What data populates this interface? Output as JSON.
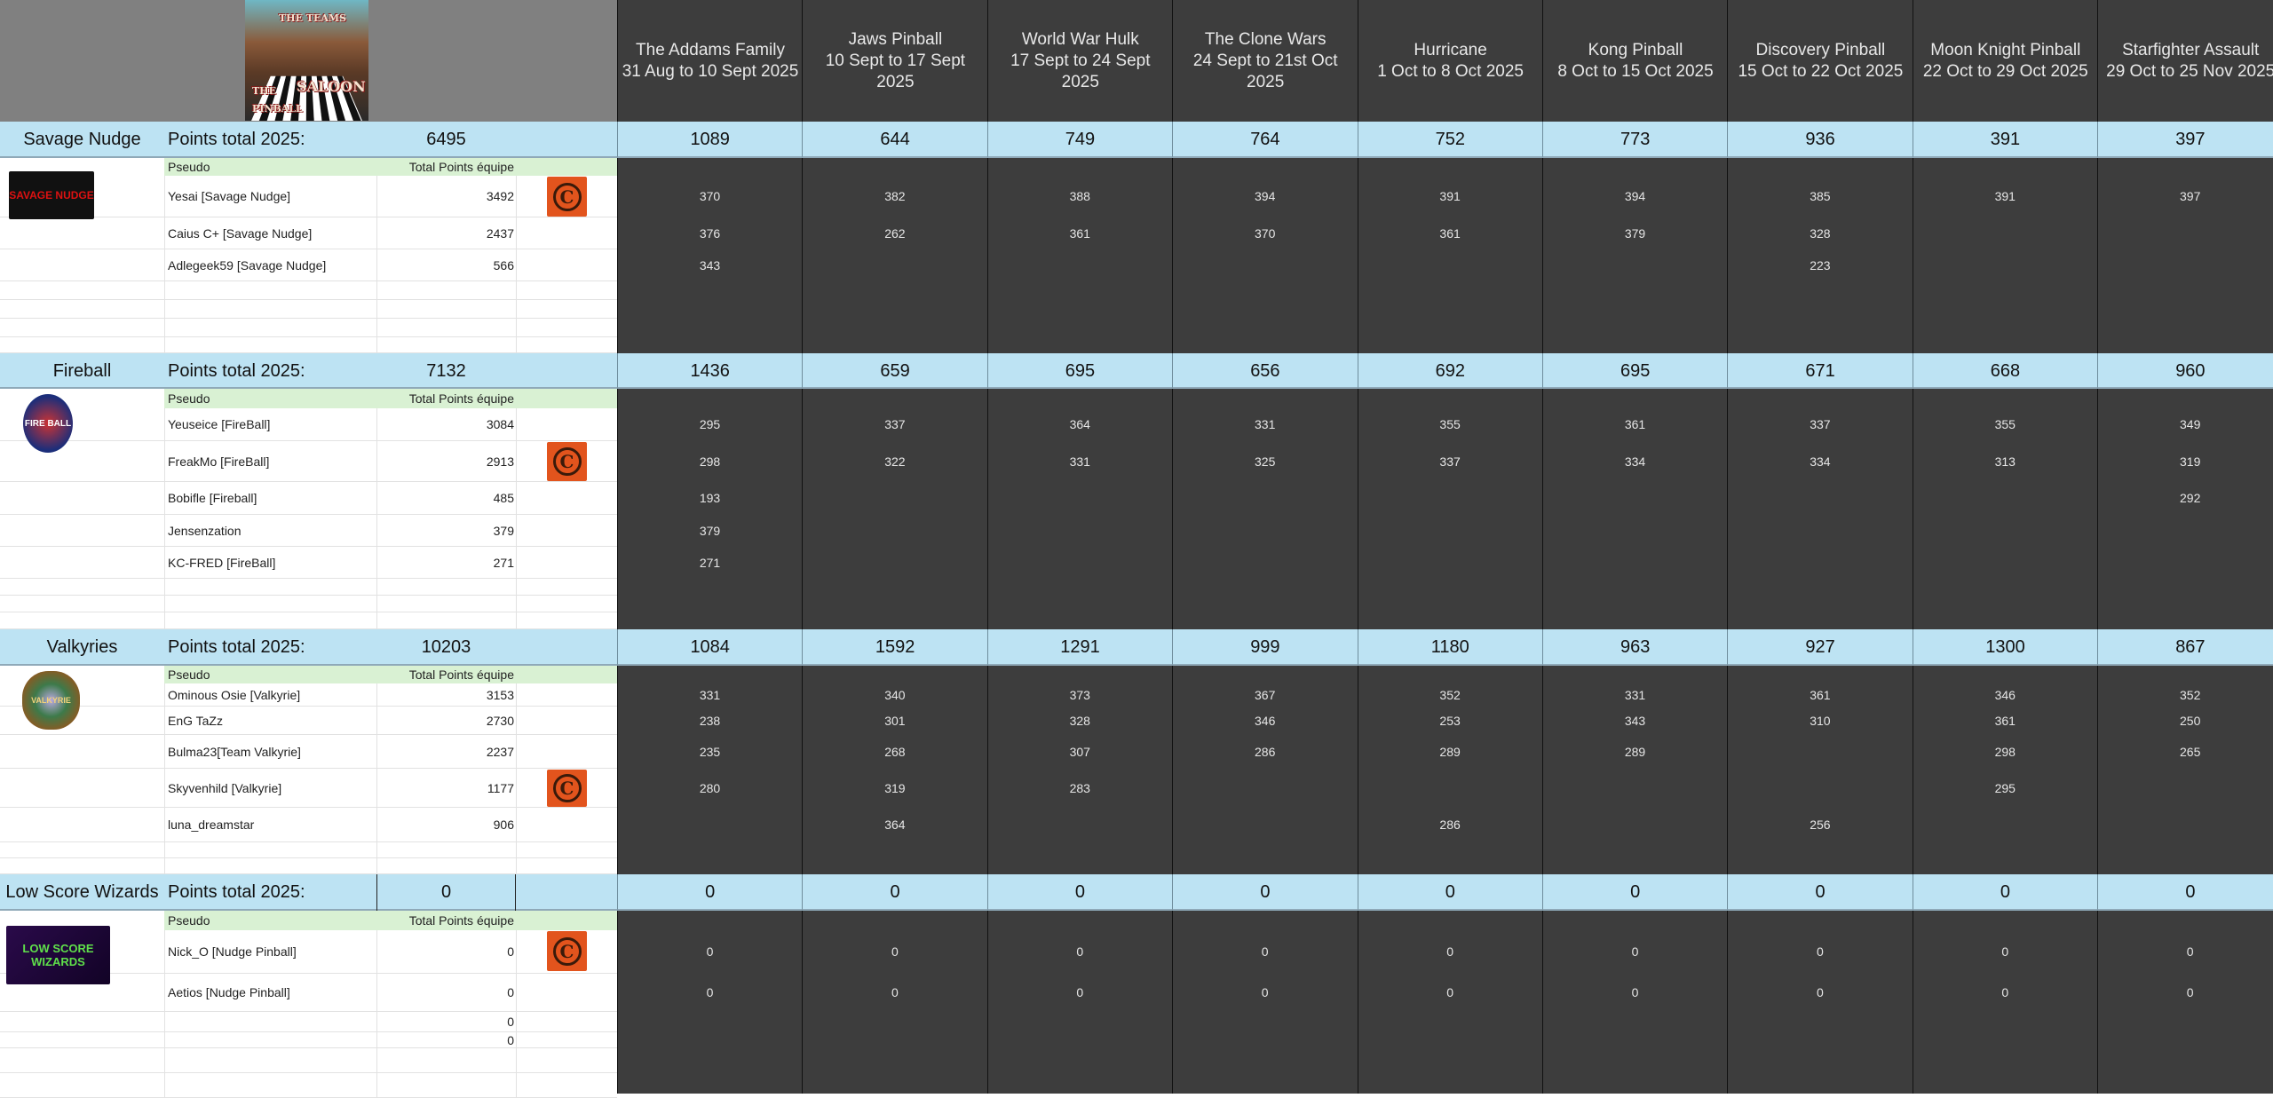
{
  "poster": {
    "line1": "THE TEAMS",
    "line2": "THE",
    "line3": "SALOON",
    "line4": "PINBALL"
  },
  "labels": {
    "points_total": "Points total 2025:",
    "pseudo": "Pseudo",
    "total_points": "Total Points équipe"
  },
  "games": [
    {
      "name": "The Addams Family",
      "dates": "31 Aug to 10 Sept 2025"
    },
    {
      "name": "Jaws Pinball",
      "dates": "10 Sept to 17 Sept 2025"
    },
    {
      "name": "World War Hulk",
      "dates": "17 Sept to 24 Sept 2025"
    },
    {
      "name": "The Clone Wars",
      "dates": "24 Sept to 21st Oct 2025"
    },
    {
      "name": "Hurricane",
      "dates": "1 Oct to  8 Oct 2025"
    },
    {
      "name": "Kong Pinball",
      "dates": "8 Oct to 15 Oct 2025"
    },
    {
      "name": "Discovery Pinball",
      "dates": "15 Oct to 22 Oct 2025"
    },
    {
      "name": "Moon Knight Pinball",
      "dates": "22 Oct to 29 Oct 2025"
    },
    {
      "name": "Starfighter Assault",
      "dates": "29 Oct to 25 Nov 2025"
    }
  ],
  "colors": {
    "team_header": "#bde3f3",
    "pseudo_header": "#d9f1d3",
    "game_column": "#3d3d3d",
    "header_gray": "#808080",
    "badge": "#e2541d"
  },
  "teams": [
    {
      "name": "Savage Nudge",
      "total": "6495",
      "logo_text": "SAVAGE NUDGE",
      "game_totals": [
        "1089",
        "644",
        "749",
        "764",
        "752",
        "773",
        "936",
        "391",
        "397"
      ],
      "players": [
        {
          "pseudo": "Yesai [Savage Nudge]",
          "total": "3492",
          "badge": "c-badge-icon",
          "scores": [
            "370",
            "382",
            "388",
            "394",
            "391",
            "394",
            "385",
            "391",
            "397"
          ]
        },
        {
          "pseudo": "Caius C+ [Savage Nudge]",
          "total": "2437",
          "scores": [
            "376",
            "262",
            "361",
            "370",
            "361",
            "379",
            "328",
            "",
            ""
          ]
        },
        {
          "pseudo": "Adlegeek59 [Savage Nudge]",
          "total": "566",
          "scores": [
            "343",
            "",
            "",
            "",
            "",
            "",
            "223",
            "",
            ""
          ]
        }
      ]
    },
    {
      "name": "Fireball",
      "total": "7132",
      "logo_text": "FIRE BALL",
      "game_totals": [
        "1436",
        "659",
        "695",
        "656",
        "692",
        "695",
        "671",
        "668",
        "960"
      ],
      "players": [
        {
          "pseudo": "Yeuseice [FireBall]",
          "total": "3084",
          "scores": [
            "295",
            "337",
            "364",
            "331",
            "355",
            "361",
            "337",
            "355",
            "349"
          ]
        },
        {
          "pseudo": "FreakMo [FireBall]",
          "total": "2913",
          "badge": "c-badge-icon",
          "scores": [
            "298",
            "322",
            "331",
            "325",
            "337",
            "334",
            "334",
            "313",
            "319"
          ]
        },
        {
          "pseudo": "Bobifle [Fireball]",
          "total": "485",
          "scores": [
            "193",
            "",
            "",
            "",
            "",
            "",
            "",
            "",
            "292"
          ]
        },
        {
          "pseudo": "Jensenzation",
          "total": "379",
          "scores": [
            "379",
            "",
            "",
            "",
            "",
            "",
            "",
            "",
            ""
          ]
        },
        {
          "pseudo": "KC-FRED [FireBall]",
          "total": "271",
          "scores": [
            "271",
            "",
            "",
            "",
            "",
            "",
            "",
            "",
            ""
          ]
        }
      ]
    },
    {
      "name": "Valkyries",
      "total": "10203",
      "logo_text": "VALKYRIE",
      "game_totals": [
        "1084",
        "1592",
        "1291",
        "999",
        "1180",
        "963",
        "927",
        "1300",
        "867"
      ],
      "players": [
        {
          "pseudo": "Ominous Osie [Valkyrie]",
          "total": "3153",
          "scores": [
            "331",
            "340",
            "373",
            "367",
            "352",
            "331",
            "361",
            "346",
            "352"
          ]
        },
        {
          "pseudo": "EnG TaZz",
          "total": "2730",
          "scores": [
            "238",
            "301",
            "328",
            "346",
            "253",
            "343",
            "310",
            "361",
            "250"
          ]
        },
        {
          "pseudo": "Bulma23[Team Valkyrie]",
          "total": "2237",
          "scores": [
            "235",
            "268",
            "307",
            "286",
            "289",
            "289",
            "",
            "298",
            "265"
          ]
        },
        {
          "pseudo": "Skyvenhild [Valkyrie]",
          "total": "1177",
          "badge": "c-badge-icon",
          "scores": [
            "280",
            "319",
            "283",
            "",
            "",
            "",
            "",
            "295",
            ""
          ]
        },
        {
          "pseudo": "luna_dreamstar",
          "total": "906",
          "scores": [
            "",
            "364",
            "",
            "",
            "286",
            "",
            "256",
            "",
            ""
          ]
        }
      ]
    },
    {
      "name": "Low Score Wizards",
      "total": "0",
      "logo_text": "LOW SCORE WIZARDS",
      "game_totals": [
        "0",
        "0",
        "0",
        "0",
        "0",
        "0",
        "0",
        "0",
        "0"
      ],
      "players": [
        {
          "pseudo": "Nick_O [Nudge Pinball]",
          "total": "0",
          "badge": "c-badge-icon",
          "scores": [
            "0",
            "0",
            "0",
            "0",
            "0",
            "0",
            "0",
            "0",
            "0"
          ]
        },
        {
          "pseudo": "Aetios [Nudge Pinball]",
          "total": "0",
          "scores": [
            "0",
            "0",
            "0",
            "0",
            "0",
            "0",
            "0",
            "0",
            "0"
          ]
        },
        {
          "pseudo": "",
          "total": "0",
          "scores": [
            "",
            "",
            "",
            "",
            "",
            "",
            "",
            "",
            ""
          ]
        },
        {
          "pseudo": "",
          "total": "0",
          "scores": [
            "",
            "",
            "",
            "",
            "",
            "",
            "",
            "",
            ""
          ]
        }
      ]
    }
  ]
}
